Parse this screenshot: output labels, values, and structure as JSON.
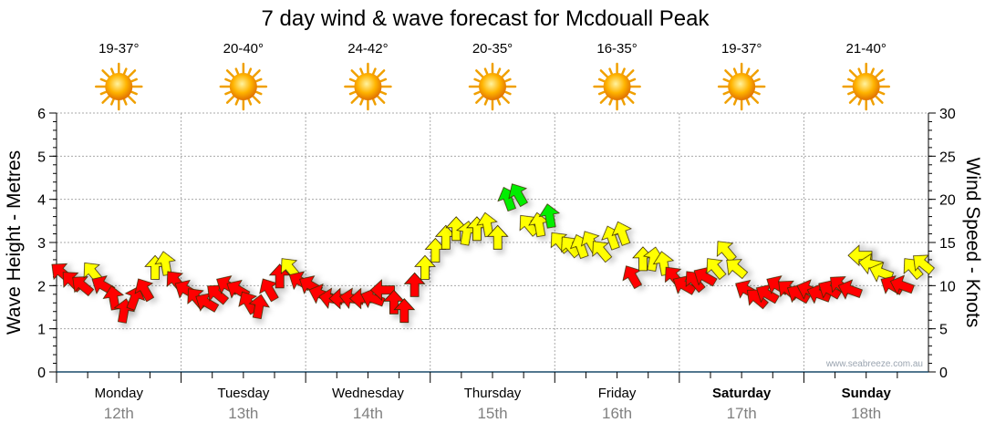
{
  "chart_data": {
    "type": "scatter",
    "title": "7 day wind & wave forecast for Mcdouall Peak",
    "ylabel_left": "Wave Height - Metres",
    "ylabel_right": "Wind Speed - Knots",
    "ylim_left": [
      0,
      6
    ],
    "ylim_right": [
      0,
      30
    ],
    "left_ticks": [
      "0",
      "1",
      "2",
      "3",
      "4",
      "5",
      "6"
    ],
    "right_ticks": [
      "0",
      "5",
      "10",
      "15",
      "20",
      "25",
      "30"
    ],
    "grid": true,
    "watermark": "www.seabreeze.com.au",
    "colors": {
      "r": "#ff0000",
      "y": "#ffff00",
      "g": "#00ee00"
    },
    "days": [
      {
        "name": "Monday",
        "date": "12th",
        "temp": "19-37°",
        "bold": false,
        "wind": [
          [
            11.5,
            310,
            "r"
          ],
          [
            10.5,
            315,
            "r"
          ],
          [
            10,
            310,
            "r"
          ],
          [
            11.5,
            320,
            "y"
          ],
          [
            10,
            300,
            "r"
          ],
          [
            8.5,
            350,
            "r"
          ],
          [
            7,
            10,
            "r"
          ],
          [
            8.5,
            20,
            "r"
          ],
          [
            9.5,
            330,
            "r"
          ],
          [
            12,
            0,
            "y"
          ],
          [
            12.5,
            350,
            "y"
          ],
          [
            10.5,
            320,
            "r"
          ]
        ]
      },
      {
        "name": "Tuesday",
        "date": "13th",
        "temp": "20-40°",
        "bold": false,
        "wind": [
          [
            9.5,
            300,
            "r"
          ],
          [
            8.5,
            320,
            "r"
          ],
          [
            8,
            300,
            "r"
          ],
          [
            9,
            310,
            "r"
          ],
          [
            10,
            300,
            "r"
          ],
          [
            9.5,
            300,
            "r"
          ],
          [
            8,
            330,
            "r"
          ],
          [
            7.5,
            10,
            "r"
          ],
          [
            9.5,
            330,
            "r"
          ],
          [
            11,
            0,
            "r"
          ],
          [
            12,
            320,
            "y"
          ],
          [
            10.5,
            300,
            "r"
          ]
        ]
      },
      {
        "name": "Wednesday",
        "date": "14th",
        "temp": "24-42°",
        "bold": false,
        "wind": [
          [
            10,
            300,
            "r"
          ],
          [
            9,
            290,
            "r"
          ],
          [
            8.5,
            280,
            "r"
          ],
          [
            8.5,
            270,
            "r"
          ],
          [
            8.5,
            280,
            "r"
          ],
          [
            8.5,
            270,
            "r"
          ],
          [
            8.5,
            290,
            "r"
          ],
          [
            9.5,
            270,
            "r"
          ],
          [
            8,
            0,
            "r"
          ],
          [
            7,
            0,
            "r"
          ],
          [
            10,
            0,
            "r"
          ],
          [
            12,
            0,
            "y"
          ]
        ]
      },
      {
        "name": "Thursday",
        "date": "15th",
        "temp": "20-35°",
        "bold": false,
        "wind": [
          [
            14,
            0,
            "y"
          ],
          [
            15.5,
            0,
            "y"
          ],
          [
            16.5,
            0,
            "y"
          ],
          [
            16,
            10,
            "y"
          ],
          [
            16.5,
            0,
            "y"
          ],
          [
            17,
            350,
            "y"
          ],
          [
            15.5,
            0,
            "y"
          ],
          [
            20,
            340,
            "g"
          ],
          [
            20.5,
            330,
            "g"
          ],
          [
            17,
            320,
            "y"
          ],
          [
            17,
            350,
            "y"
          ],
          [
            18,
            350,
            "g"
          ]
        ]
      },
      {
        "name": "Friday",
        "date": "16th",
        "temp": "16-35°",
        "bold": false,
        "wind": [
          [
            15,
            320,
            "y"
          ],
          [
            14.5,
            320,
            "y"
          ],
          [
            14.5,
            340,
            "y"
          ],
          [
            15,
            330,
            "y"
          ],
          [
            14,
            320,
            "y"
          ],
          [
            15.5,
            340,
            "y"
          ],
          [
            16,
            340,
            "y"
          ],
          [
            11,
            330,
            "r"
          ],
          [
            13,
            0,
            "y"
          ],
          [
            13,
            10,
            "y"
          ],
          [
            12.5,
            350,
            "y"
          ],
          [
            11,
            320,
            "r"
          ]
        ]
      },
      {
        "name": "Saturday",
        "date": "17th",
        "temp": "19-37°",
        "bold": true,
        "wind": [
          [
            10,
            300,
            "r"
          ],
          [
            10.5,
            320,
            "r"
          ],
          [
            11,
            300,
            "r"
          ],
          [
            12,
            320,
            "y"
          ],
          [
            14,
            320,
            "y"
          ],
          [
            12,
            310,
            "y"
          ],
          [
            9.5,
            300,
            "r"
          ],
          [
            8.5,
            310,
            "r"
          ],
          [
            9,
            300,
            "r"
          ],
          [
            10,
            300,
            "r"
          ],
          [
            9.5,
            310,
            "r"
          ],
          [
            9,
            300,
            "r"
          ]
        ]
      },
      {
        "name": "Sunday",
        "date": "18th",
        "temp": "21-40°",
        "bold": true,
        "wind": [
          [
            9.5,
            290,
            "r"
          ],
          [
            9,
            290,
            "r"
          ],
          [
            9.5,
            300,
            "r"
          ],
          [
            10,
            310,
            "r"
          ],
          [
            9.5,
            290,
            "r"
          ],
          [
            13.5,
            270,
            "y"
          ],
          [
            12.5,
            280,
            "y"
          ],
          [
            11.5,
            290,
            "y"
          ],
          [
            10,
            300,
            "r"
          ],
          [
            10,
            290,
            "r"
          ],
          [
            12,
            320,
            "y"
          ],
          [
            12.5,
            310,
            "y"
          ]
        ]
      }
    ]
  }
}
